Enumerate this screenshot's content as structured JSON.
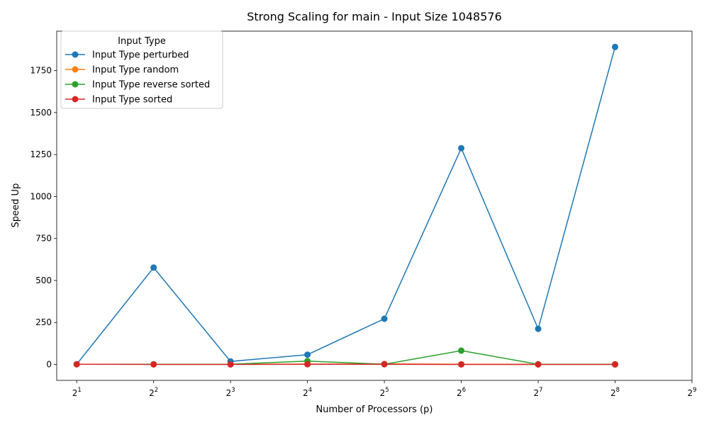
{
  "chart_data": {
    "type": "line",
    "title": "Strong Scaling for main - Input Size 1048576",
    "xlabel": "Number of Processors (p)",
    "ylabel": "Speed Up",
    "x_scale": "log2",
    "x": [
      2,
      4,
      8,
      16,
      32,
      64,
      128,
      256
    ],
    "xlim": [
      1.67,
      512
    ],
    "ylim": [
      -95,
      1985
    ],
    "x_ticks": [
      {
        "value": 2,
        "base": "2",
        "exp": "1"
      },
      {
        "value": 4,
        "base": "2",
        "exp": "2"
      },
      {
        "value": 8,
        "base": "2",
        "exp": "3"
      },
      {
        "value": 16,
        "base": "2",
        "exp": "4"
      },
      {
        "value": 32,
        "base": "2",
        "exp": "5"
      },
      {
        "value": 64,
        "base": "2",
        "exp": "6"
      },
      {
        "value": 128,
        "base": "2",
        "exp": "7"
      },
      {
        "value": 256,
        "base": "2",
        "exp": "8"
      },
      {
        "value": 512,
        "base": "2",
        "exp": "9"
      }
    ],
    "y_ticks": [
      {
        "value": 0,
        "label": "0"
      },
      {
        "value": 250,
        "label": "250"
      },
      {
        "value": 500,
        "label": "500"
      },
      {
        "value": 750,
        "label": "750"
      },
      {
        "value": 1000,
        "label": "1000"
      },
      {
        "value": 1250,
        "label": "1250"
      },
      {
        "value": 1500,
        "label": "1500"
      },
      {
        "value": 1750,
        "label": "1750"
      }
    ],
    "grid": false,
    "legend": {
      "title": "Input Type",
      "placement": "top-left"
    },
    "series": [
      {
        "name": "Input Type perturbed",
        "color": "#1f77b4",
        "values": [
          1,
          577,
          18,
          58,
          272,
          1288,
          212,
          1891
        ]
      },
      {
        "name": "Input Type random",
        "color": "#ff7f0e",
        "values": [
          1,
          1,
          1,
          2,
          3,
          1,
          1,
          1
        ]
      },
      {
        "name": "Input Type reverse sorted",
        "color": "#2ca02c",
        "values": [
          1,
          1,
          1,
          20,
          1,
          82,
          1,
          1
        ]
      },
      {
        "name": "Input Type sorted",
        "color": "#d62728",
        "values": [
          1,
          0,
          0,
          1,
          1,
          0,
          0,
          0
        ]
      }
    ]
  }
}
